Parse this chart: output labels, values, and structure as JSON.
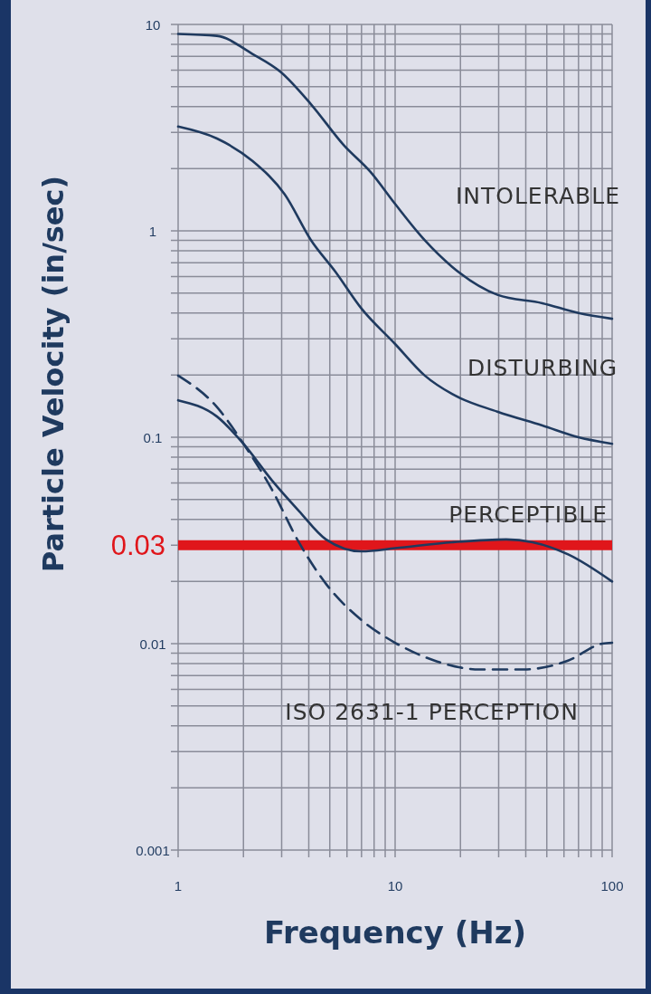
{
  "chart_data": {
    "type": "line",
    "xlabel": "Frequency (Hz)",
    "ylabel": "Particle Velocity (in/sec)",
    "log": "xy",
    "grid": true,
    "xlim": [
      1,
      100
    ],
    "xticks": [
      1,
      10,
      100
    ],
    "ylim": [
      0.001,
      10
    ],
    "yticks": [
      0.001,
      0.01,
      0.1,
      1,
      10
    ],
    "series": [
      {
        "name": "INTOLERABLE",
        "color": "#1f3a5f",
        "x": [
          1,
          1.51,
          2.2,
          2.96,
          4.1,
          5.8,
          7.7,
          10,
          13.7,
          18.3,
          29.6,
          47.7,
          70,
          100
        ],
        "values": [
          9.0,
          8.8,
          7.2,
          5.9,
          4.1,
          2.6,
          1.93,
          1.35,
          0.9,
          0.67,
          0.49,
          0.446,
          0.4,
          0.375
        ]
      },
      {
        "name": "DISTURBING",
        "color": "#1f3a5f",
        "x": [
          1,
          1.51,
          2.2,
          3.1,
          4.1,
          5.3,
          7.0,
          10,
          13.7,
          18.3,
          29.6,
          47.7,
          70,
          100
        ],
        "values": [
          3.2,
          2.8,
          2.18,
          1.5,
          0.9,
          0.635,
          0.42,
          0.283,
          0.199,
          0.162,
          0.133,
          0.114,
          0.1,
          0.093
        ]
      },
      {
        "name": "PERCEPTIBLE",
        "color": "#1f3a5f",
        "x": [
          1,
          1.51,
          2.0,
          2.7,
          3.6,
          4.8,
          7.0,
          10,
          18.3,
          32.5,
          43,
          63,
          100
        ],
        "values": [
          0.151,
          0.126,
          0.093,
          0.062,
          0.044,
          0.032,
          0.028,
          0.029,
          0.031,
          0.032,
          0.031,
          0.027,
          0.02
        ]
      },
      {
        "name": "ISO 2631-1 PERCEPTION",
        "color": "#1f3a5f",
        "line_style": "dashed",
        "x": [
          1,
          1.51,
          2.0,
          2.7,
          3.6,
          4.8,
          7.0,
          10,
          15.1,
          24.5,
          39.4,
          63,
          90,
          100
        ],
        "values": [
          0.199,
          0.14,
          0.093,
          0.056,
          0.031,
          0.0195,
          0.013,
          0.0101,
          0.0083,
          0.0075,
          0.0075,
          0.0083,
          0.01,
          0.0101
        ]
      }
    ],
    "ref_lines": [
      {
        "axis": "y",
        "value": 0.03,
        "label": "0.03",
        "color": "#e0161b"
      }
    ]
  }
}
